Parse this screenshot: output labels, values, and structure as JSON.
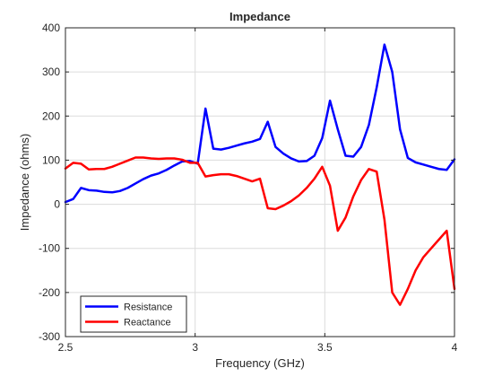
{
  "chart_data": {
    "type": "line",
    "title": "Impedance",
    "xlabel": "Frequency (GHz)",
    "ylabel": "Impedance (ohms)",
    "xlim": [
      2.5,
      4
    ],
    "ylim": [
      -300,
      400
    ],
    "xticks": [
      2.5,
      3,
      3.5,
      4
    ],
    "xtick_labels": [
      "2.5",
      "3",
      "3.5",
      "4"
    ],
    "yticks": [
      -300,
      -200,
      -100,
      0,
      100,
      200,
      300,
      400
    ],
    "ytick_labels": [
      "-300",
      "-200",
      "-100",
      "0",
      "100",
      "200",
      "300",
      "400"
    ],
    "grid": true,
    "legend_position": "bottom-left",
    "x": [
      2.5,
      2.53,
      2.56,
      2.59,
      2.62,
      2.65,
      2.68,
      2.71,
      2.74,
      2.77,
      2.8,
      2.83,
      2.86,
      2.89,
      2.92,
      2.95,
      2.98,
      3.01,
      3.04,
      3.07,
      3.1,
      3.13,
      3.16,
      3.19,
      3.22,
      3.25,
      3.28,
      3.31,
      3.34,
      3.37,
      3.4,
      3.43,
      3.46,
      3.49,
      3.52,
      3.55,
      3.58,
      3.61,
      3.64,
      3.67,
      3.7,
      3.73,
      3.76,
      3.79,
      3.82,
      3.85,
      3.88,
      3.91,
      3.94,
      3.97,
      4.0
    ],
    "series": [
      {
        "name": "Resistance",
        "color": "#0000ff",
        "values": [
          5,
          12,
          37,
          32,
          31,
          28,
          27,
          30,
          37,
          47,
          57,
          65,
          70,
          78,
          88,
          97,
          98,
          92,
          217,
          126,
          124,
          128,
          133,
          138,
          142,
          148,
          187,
          130,
          115,
          104,
          97,
          98,
          110,
          150,
          235,
          170,
          110,
          108,
          130,
          180,
          265,
          362,
          300,
          170,
          105,
          95,
          90,
          85,
          80,
          78,
          102
        ]
      },
      {
        "name": "Reactance",
        "color": "#ff0000",
        "values": [
          81,
          94,
          92,
          79,
          80,
          80,
          85,
          92,
          99,
          106,
          106,
          104,
          103,
          104,
          104,
          101,
          94,
          94,
          63,
          66,
          68,
          68,
          64,
          58,
          52,
          58,
          -9,
          -11,
          -3,
          7,
          20,
          37,
          58,
          85,
          42,
          -60,
          -30,
          18,
          55,
          80,
          74,
          -35,
          -200,
          -228,
          -192,
          -150,
          -120,
          -100,
          -80,
          -60,
          -192
        ]
      }
    ]
  }
}
